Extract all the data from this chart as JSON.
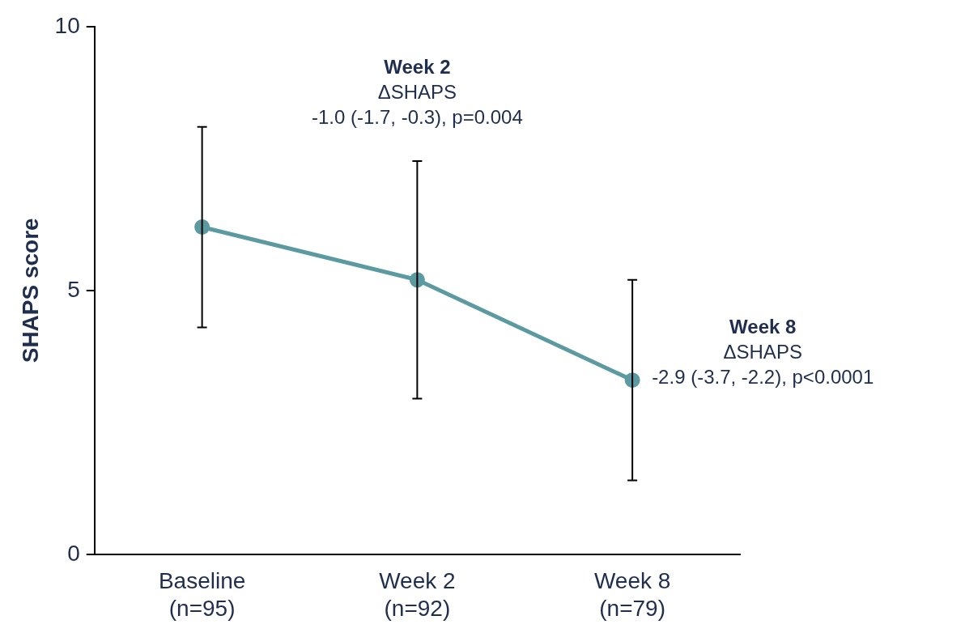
{
  "chart_data": {
    "type": "line",
    "ylabel": "SHAPS score",
    "categories": [
      "Baseline\n(n=95)",
      "Week 2\n(n=92)",
      "Week 8\n(n=79)"
    ],
    "series": [
      {
        "color": "#5b9aa0",
        "values": [
          6.2,
          5.2,
          3.3
        ],
        "errors": [
          1.9,
          2.25,
          1.9
        ]
      }
    ],
    "ylim": [
      0,
      10
    ],
    "yticks": [
      0,
      5,
      10
    ],
    "grid": false,
    "legend": false,
    "marker": "circle",
    "line_style": "solid",
    "annotations": [
      "Week 2\nΔSHAPS\n-1.0 (-1.7, -0.3), p=0.004",
      "Week 8\nΔSHAPS\n-2.9 (-3.7, -2.2), p<0.0001"
    ]
  }
}
